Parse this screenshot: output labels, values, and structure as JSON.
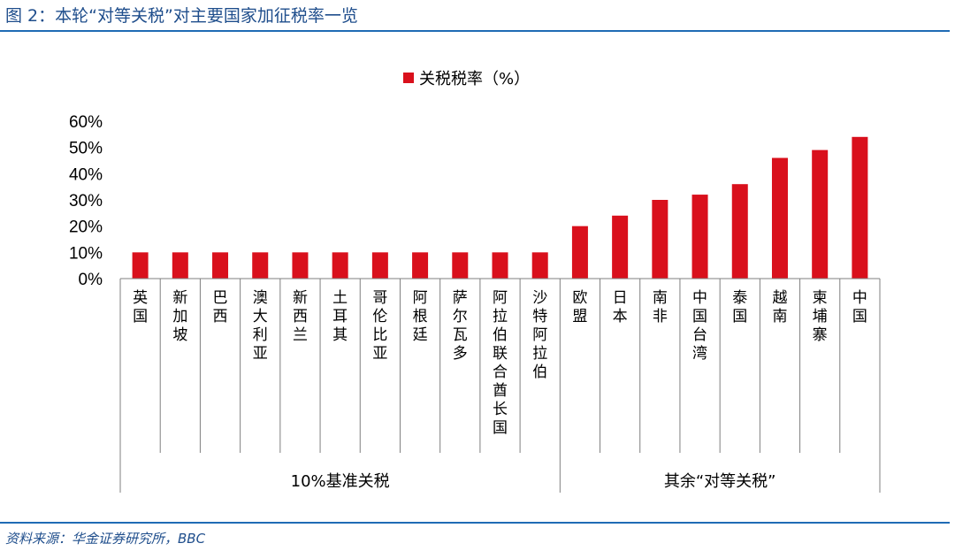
{
  "figure": {
    "title": "图 2：本轮“对等关税”对主要国家加征税率一览",
    "source": "资料来源：华金证券研究所，BBC"
  },
  "chart_data": {
    "type": "bar",
    "series": [
      {
        "name": "关税税率（%）",
        "color": "#d9101c",
        "values": [
          10,
          10,
          10,
          10,
          10,
          10,
          10,
          10,
          10,
          10,
          10,
          20,
          24,
          30,
          32,
          36,
          46,
          49,
          54
        ]
      }
    ],
    "categories": [
      "英国",
      "新加坡",
      "巴西",
      "澳大利亚",
      "新西兰",
      "土耳其",
      "哥伦比亚",
      "阿根廷",
      "萨尔瓦多",
      "阿拉伯联合酋长国",
      "沙特阿拉伯",
      "欧盟",
      "日本",
      "南非",
      "中国台湾",
      "泰国",
      "越南",
      "柬埔寨",
      "中国"
    ],
    "groups": [
      {
        "label": "10%基准关税",
        "count": 11
      },
      {
        "label": "其余“对等关税”",
        "count": 8
      }
    ],
    "ylim": [
      0,
      60
    ],
    "yticks": [
      "0%",
      "10%",
      "20%",
      "30%",
      "40%",
      "50%",
      "60%"
    ],
    "grid": false,
    "legend_position": "top-center"
  }
}
